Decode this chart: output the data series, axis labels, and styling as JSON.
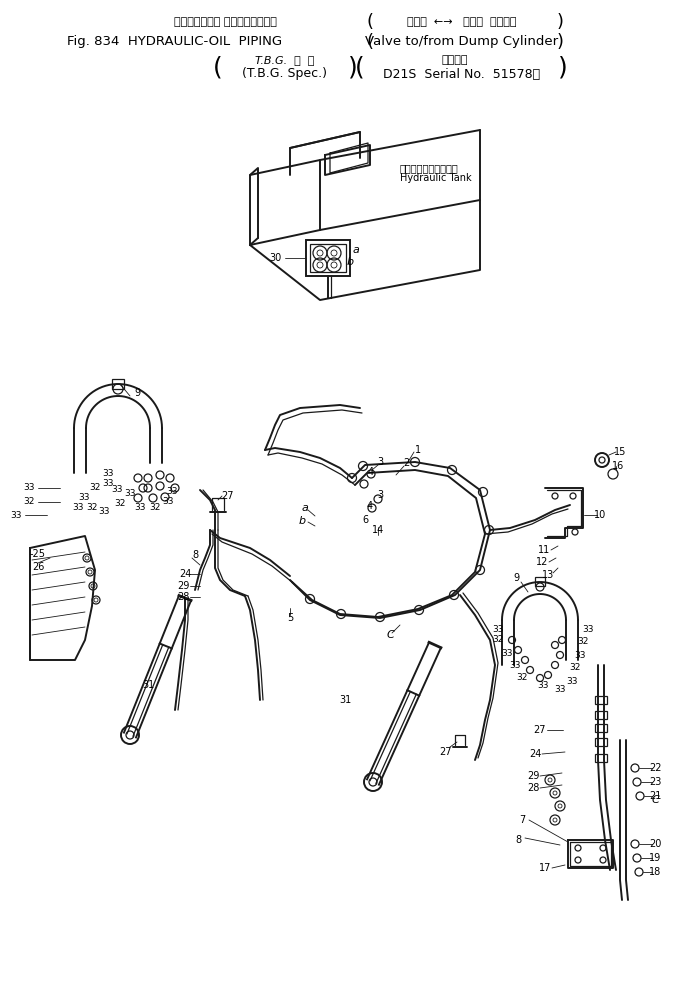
{
  "bg_color": "#ffffff",
  "line_color": "#1a1a1a",
  "text_color": "#000000",
  "title": {
    "jp_left": "ハイドロリック オイルパイピング",
    "jp_right": "バルブ  ←→   ダンプ  シリンダ",
    "en_left": "Fig. 834  HYDRAULIC-OIL  PIPING",
    "en_right": "Valve to/from Dump Cylinder",
    "sub_jp_left": "T.B.G.  仕  様",
    "sub_en_left": "(T.B.G. Spec.)",
    "sub_jp_right": "適用号機",
    "sub_en_right": "D21S  Serial No.  51578－"
  },
  "tank_label_jp": "ハイドロリックタンク",
  "tank_label_en": "Hydraulic Tank"
}
